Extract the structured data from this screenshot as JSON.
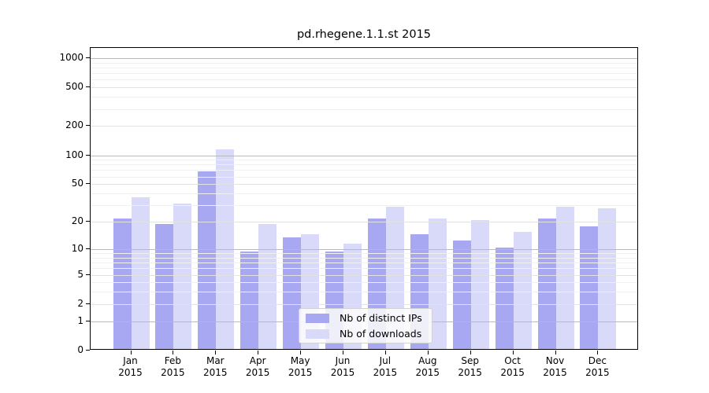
{
  "chart_data": {
    "type": "bar",
    "title": "pd.rhegene.1.1.st 2015",
    "categories": [
      "Jan",
      "Feb",
      "Mar",
      "Apr",
      "May",
      "Jun",
      "Jul",
      "Aug",
      "Sep",
      "Oct",
      "Nov",
      "Dec"
    ],
    "x_year": "2015",
    "series": [
      {
        "name": "Nb of distinct IPs",
        "color": "#a7a7f2",
        "values": [
          21,
          18,
          65,
          9,
          13,
          9,
          21,
          14,
          12,
          10,
          21,
          17
        ]
      },
      {
        "name": "Nb of downloads",
        "color": "#d9d9fa",
        "values": [
          35,
          30,
          110,
          18,
          14,
          11,
          28,
          21,
          20,
          15,
          28,
          27
        ]
      }
    ],
    "ylabel": "",
    "xlabel": "",
    "y_scale": "log10(value+1)",
    "y_ticks": [
      0,
      1,
      2,
      5,
      10,
      20,
      50,
      100,
      200,
      500,
      1000
    ],
    "y_minor_gridlines": [
      3,
      4,
      6,
      7,
      8,
      9,
      30,
      40,
      60,
      70,
      80,
      90,
      300,
      400,
      600,
      700,
      800,
      900
    ],
    "ylim": [
      0,
      1200
    ],
    "grid": true,
    "legend_position": "inside-bottom-center",
    "colors": {
      "decade_gridline": "#b9b9b9",
      "major_gridline": "#e2e2e2",
      "minor_gridline": "#f0f0f0",
      "axis": "#000000"
    }
  }
}
